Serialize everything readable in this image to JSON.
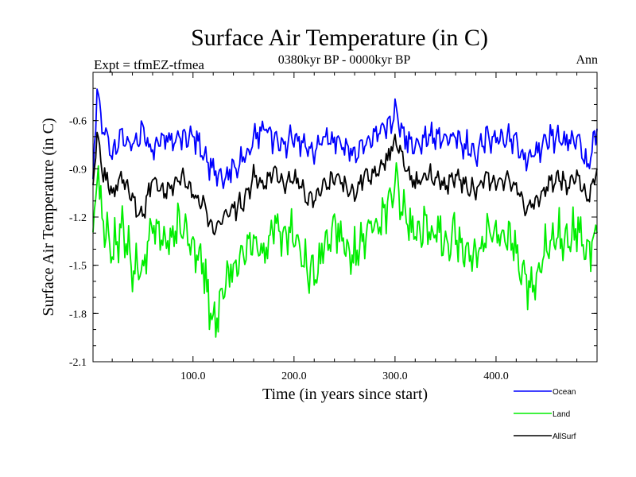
{
  "chart_data": {
    "type": "line",
    "title": "Surface Air Temperature (in C)",
    "subtitle": "0380kyr BP - 0000kyr BP",
    "left_label": "Expt = tfmEZ-tfmea",
    "right_label": "Ann",
    "xlabel": "Time (in years since start)",
    "ylabel": "Surface Air Temperature (in C)",
    "xlim": [
      1,
      500
    ],
    "ylim": [
      -2.1,
      -0.3
    ],
    "x_ticks": [
      100,
      200,
      300,
      400
    ],
    "x_tick_labels": [
      "100.0",
      "200.0",
      "300.0",
      "400.0"
    ],
    "y_ticks": [
      -2.1,
      -1.8,
      -1.5,
      -1.2,
      -0.9,
      -0.6
    ],
    "y_tick_labels": [
      "-2.1",
      "-1.8",
      "-1.5",
      "-1.2",
      "-0.9",
      "-0.6"
    ],
    "legend_position": "bottom-right, below plot",
    "grid": false,
    "series": [
      {
        "name": "Ocean",
        "color": "#0000ff",
        "x": [
          1,
          5,
          10,
          20,
          30,
          40,
          50,
          60,
          70,
          80,
          90,
          100,
          110,
          120,
          130,
          140,
          150,
          160,
          170,
          180,
          190,
          200,
          210,
          220,
          230,
          240,
          250,
          260,
          270,
          280,
          290,
          300,
          310,
          320,
          330,
          340,
          350,
          360,
          370,
          380,
          390,
          400,
          410,
          420,
          430,
          440,
          450,
          460,
          470,
          480,
          490,
          500
        ],
        "values": [
          -0.95,
          -0.4,
          -0.65,
          -0.8,
          -0.7,
          -0.75,
          -0.68,
          -0.8,
          -0.7,
          -0.72,
          -0.68,
          -0.7,
          -0.8,
          -0.92,
          -0.95,
          -0.9,
          -0.85,
          -0.72,
          -0.65,
          -0.7,
          -0.75,
          -0.7,
          -0.75,
          -0.8,
          -0.7,
          -0.72,
          -0.75,
          -0.8,
          -0.75,
          -0.72,
          -0.65,
          -0.55,
          -0.7,
          -0.75,
          -0.7,
          -0.68,
          -0.72,
          -0.7,
          -0.75,
          -0.8,
          -0.7,
          -0.72,
          -0.7,
          -0.75,
          -0.85,
          -0.8,
          -0.72,
          -0.7,
          -0.75,
          -0.7,
          -0.9,
          -0.65
        ]
      },
      {
        "name": "Land",
        "color": "#00ee00",
        "x": [
          1,
          5,
          10,
          20,
          30,
          40,
          50,
          60,
          70,
          80,
          90,
          100,
          110,
          120,
          130,
          140,
          150,
          160,
          170,
          180,
          190,
          200,
          210,
          220,
          230,
          240,
          250,
          260,
          270,
          280,
          290,
          300,
          310,
          320,
          330,
          340,
          350,
          360,
          370,
          380,
          390,
          400,
          410,
          420,
          430,
          440,
          450,
          460,
          470,
          480,
          490,
          500
        ],
        "values": [
          -1.45,
          -0.85,
          -1.2,
          -1.4,
          -1.25,
          -1.5,
          -1.55,
          -1.2,
          -1.4,
          -1.3,
          -1.25,
          -1.4,
          -1.5,
          -1.9,
          -1.6,
          -1.5,
          -1.45,
          -1.3,
          -1.45,
          -1.25,
          -1.35,
          -1.3,
          -1.5,
          -1.55,
          -1.4,
          -1.25,
          -1.35,
          -1.45,
          -1.3,
          -1.25,
          -1.2,
          -0.95,
          -1.2,
          -1.3,
          -1.25,
          -1.3,
          -1.35,
          -1.3,
          -1.4,
          -1.45,
          -1.3,
          -1.35,
          -1.3,
          -1.4,
          -1.6,
          -1.55,
          -1.4,
          -1.3,
          -1.35,
          -1.25,
          -1.45,
          -1.3
        ]
      },
      {
        "name": "AllSurf",
        "color": "#000000",
        "x": [
          1,
          5,
          10,
          20,
          30,
          40,
          50,
          60,
          70,
          80,
          90,
          100,
          110,
          120,
          130,
          140,
          150,
          160,
          170,
          180,
          190,
          200,
          210,
          220,
          230,
          240,
          250,
          260,
          270,
          280,
          290,
          300,
          310,
          320,
          330,
          340,
          350,
          360,
          370,
          380,
          390,
          400,
          410,
          420,
          430,
          440,
          450,
          460,
          470,
          480,
          490,
          500
        ],
        "values": [
          -1.0,
          -0.7,
          -0.9,
          -1.05,
          -0.95,
          -1.1,
          -1.2,
          -0.95,
          -1.05,
          -1.0,
          -0.95,
          -1.05,
          -1.1,
          -1.3,
          -1.2,
          -1.15,
          -1.1,
          -0.95,
          -1.0,
          -0.92,
          -1.0,
          -0.95,
          -1.05,
          -1.1,
          -1.0,
          -0.95,
          -1.0,
          -1.05,
          -0.95,
          -0.92,
          -0.88,
          -0.7,
          -0.9,
          -1.0,
          -0.95,
          -0.95,
          -1.0,
          -0.95,
          -1.0,
          -1.05,
          -0.95,
          -1.0,
          -0.95,
          -1.0,
          -1.15,
          -1.1,
          -1.0,
          -0.95,
          -1.0,
          -0.92,
          -1.1,
          -0.9
        ]
      }
    ]
  }
}
